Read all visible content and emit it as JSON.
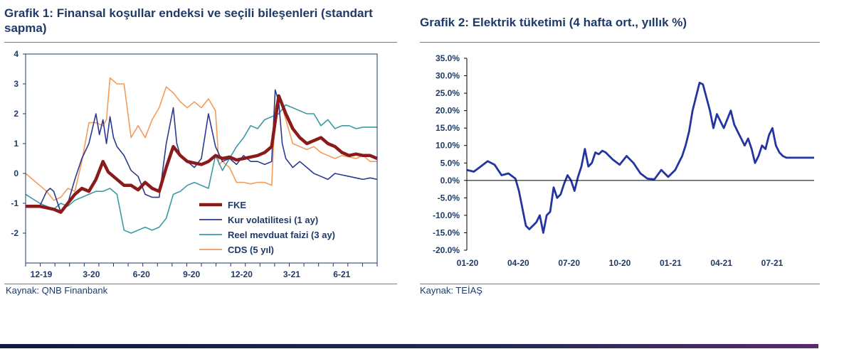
{
  "chart_data": [
    {
      "type": "line",
      "title": "Grafik 1: Finansal koşullar endeksi ve seçili bileşenleri (standart sapma)",
      "source": "Kaynak: QNB Finanbank",
      "ylim": [
        -3,
        4
      ],
      "yticks": [
        "4",
        "3",
        "2",
        "1",
        "0",
        "-1",
        "-2"
      ],
      "xtick_labels": [
        "12-19",
        "3-20",
        "6-20",
        "9-20",
        "12-20",
        "3-21",
        "6-21"
      ],
      "xlim": [
        0,
        100
      ],
      "grid": false,
      "legend_position": "bottom-right",
      "series": [
        {
          "name": "FKE",
          "color": "#8b1a1a",
          "x": [
            0,
            4,
            8,
            10,
            12,
            14,
            16,
            18,
            20,
            22,
            23.5,
            26,
            28,
            30,
            32,
            34,
            36,
            38,
            40,
            42,
            44,
            46,
            48,
            50,
            52,
            54,
            56,
            58,
            60,
            62,
            64,
            66,
            68,
            70,
            72,
            74,
            76,
            78,
            80,
            82,
            84,
            86,
            88,
            90,
            92,
            94,
            96,
            98,
            100
          ],
          "values": [
            -1.1,
            -1.1,
            -1.2,
            -1.3,
            -1.0,
            -0.7,
            -0.5,
            -0.6,
            -0.2,
            0.4,
            0.05,
            -0.2,
            -0.4,
            -0.4,
            -0.55,
            -0.3,
            -0.5,
            -0.6,
            0.2,
            0.9,
            0.6,
            0.4,
            0.35,
            0.3,
            0.4,
            0.6,
            0.5,
            0.55,
            0.45,
            0.5,
            0.55,
            0.6,
            0.7,
            0.9,
            2.6,
            2.0,
            1.5,
            1.2,
            1.0,
            1.1,
            1.2,
            1.0,
            0.9,
            0.7,
            0.6,
            0.65,
            0.6,
            0.6,
            0.5
          ]
        },
        {
          "name": "Kur volatilitesi (1 ay)",
          "color": "#2b3990",
          "x": [
            0,
            4,
            6,
            7,
            8,
            10,
            12,
            14,
            16,
            18,
            20,
            21,
            22,
            23,
            24,
            25,
            26,
            28,
            30,
            32,
            34,
            36,
            38,
            40,
            42,
            43,
            44,
            46,
            48,
            50,
            52,
            54,
            56,
            58,
            60,
            62,
            64,
            66,
            68,
            70,
            71,
            72,
            73,
            74,
            76,
            78,
            80,
            82,
            84,
            86,
            88,
            90,
            92,
            94,
            96,
            98,
            100
          ],
          "values": [
            -1.1,
            -1.1,
            -0.6,
            -0.5,
            -0.6,
            -1.3,
            -1.0,
            -0.2,
            0.5,
            1.0,
            2.0,
            1.3,
            1.8,
            1.0,
            1.9,
            1.2,
            0.9,
            0.6,
            0.1,
            -0.1,
            -0.7,
            -0.8,
            -0.8,
            1.0,
            2.2,
            1.0,
            0.6,
            0.4,
            0.2,
            0.5,
            2.0,
            0.9,
            0.4,
            0.5,
            0.3,
            0.6,
            0.4,
            0.4,
            0.3,
            0.4,
            2.8,
            2.4,
            1.0,
            0.5,
            0.2,
            0.4,
            0.2,
            0.0,
            -0.1,
            -0.2,
            0.0,
            -0.05,
            -0.1,
            -0.15,
            -0.2,
            -0.15,
            -0.2
          ]
        },
        {
          "name": "Reel mevduat faizi (3 ay)",
          "color": "#3a9aa8",
          "x": [
            0,
            4,
            8,
            10,
            12,
            14,
            16,
            18,
            20,
            22,
            24,
            26,
            28,
            30,
            32,
            34,
            36,
            38,
            40,
            42,
            44,
            46,
            48,
            50,
            52,
            54,
            56,
            58,
            60,
            62,
            64,
            66,
            68,
            70,
            72,
            74,
            76,
            78,
            80,
            82,
            84,
            86,
            88,
            90,
            92,
            94,
            96,
            98,
            100
          ],
          "values": [
            -0.7,
            -1.0,
            -1.2,
            -1.0,
            -1.1,
            -0.9,
            -0.8,
            -0.7,
            -0.6,
            -0.6,
            -0.5,
            -0.7,
            -1.9,
            -2.0,
            -1.9,
            -1.8,
            -1.9,
            -1.8,
            -1.5,
            -0.7,
            -0.6,
            -0.4,
            -0.3,
            -0.4,
            -0.5,
            0.6,
            0.1,
            0.5,
            0.9,
            1.2,
            1.6,
            1.5,
            1.8,
            1.9,
            2.0,
            2.3,
            2.2,
            2.1,
            2.0,
            2.0,
            1.6,
            1.8,
            1.5,
            1.6,
            1.6,
            1.5,
            1.55,
            1.55,
            1.55
          ]
        },
        {
          "name": "CDS (5 yıl)",
          "color": "#f39c5a",
          "x": [
            0,
            3,
            6,
            8,
            10,
            12,
            14,
            16,
            18,
            20,
            22,
            23,
            24,
            26,
            28,
            30,
            32,
            34,
            36,
            38,
            40,
            42,
            44,
            46,
            48,
            50,
            52,
            54,
            55,
            56,
            58,
            60,
            62,
            64,
            66,
            68,
            70,
            71,
            72,
            74,
            76,
            78,
            80,
            82,
            84,
            86,
            88,
            90,
            92,
            94,
            96,
            98,
            100
          ],
          "values": [
            0.0,
            -0.3,
            -0.6,
            -0.9,
            -0.8,
            -0.5,
            -0.6,
            0.4,
            1.7,
            1.7,
            1.6,
            1.8,
            3.2,
            3.0,
            3.0,
            1.2,
            1.6,
            1.2,
            1.8,
            2.2,
            2.9,
            2.7,
            2.4,
            2.2,
            2.4,
            2.2,
            2.5,
            2.1,
            0.3,
            0.4,
            0.2,
            -0.3,
            -0.3,
            -0.35,
            -0.3,
            -0.3,
            -0.4,
            2.2,
            2.6,
            1.8,
            1.0,
            0.9,
            0.8,
            0.9,
            0.7,
            0.6,
            0.5,
            0.6,
            0.55,
            0.5,
            0.6,
            0.4,
            0.4
          ]
        }
      ]
    },
    {
      "type": "line",
      "title": "Grafik 2: Elektrik tüketimi (4 hafta ort., yıllık %)",
      "source": "Kaynak: TEİAŞ",
      "ylim": [
        -20,
        35
      ],
      "yticks": [
        "35.0%",
        "30.0%",
        "25.0%",
        "20.0%",
        "15.0%",
        "10.0%",
        "5.0%",
        "0.0%",
        "-5.0%",
        "-10.0%",
        "-15.0%",
        "-20.0%"
      ],
      "xtick_labels": [
        "01-20",
        "04-20",
        "07-20",
        "10-20",
        "01-21",
        "04-21",
        "07-21"
      ],
      "xlim": [
        0,
        100
      ],
      "grid": false,
      "series": [
        {
          "name": "",
          "color": "#2535a0",
          "x": [
            0,
            2,
            4,
            6,
            8,
            10,
            12,
            14,
            15,
            16,
            17,
            18,
            19,
            20,
            21,
            22,
            23,
            24,
            25,
            26,
            27,
            28,
            29,
            30,
            31,
            32,
            33,
            34,
            35,
            36,
            37,
            38,
            39,
            40,
            41,
            42,
            44,
            46,
            48,
            50,
            52,
            54,
            56,
            58,
            60,
            62,
            63,
            64,
            65,
            66,
            67,
            68,
            70,
            71,
            72,
            74,
            76,
            77,
            78,
            79,
            80,
            81,
            82,
            83,
            84,
            85,
            86,
            87,
            88,
            89,
            90,
            91,
            92,
            93,
            94,
            95,
            96,
            97,
            98,
            99,
            100
          ],
          "values": [
            3.0,
            2.5,
            4.0,
            5.5,
            4.5,
            1.5,
            2.0,
            0.5,
            -3.0,
            -8.0,
            -13.0,
            -14.0,
            -13.0,
            -12.0,
            -10.0,
            -15.0,
            -10.0,
            -9.0,
            -2.0,
            -5.0,
            -4.0,
            -1.0,
            1.5,
            0.0,
            -3.0,
            1.0,
            4.0,
            9.0,
            4.0,
            5.0,
            8.0,
            7.5,
            8.5,
            8.0,
            7.0,
            6.0,
            4.5,
            7.0,
            5.0,
            2.0,
            0.5,
            0.3,
            3.0,
            1.0,
            3.0,
            7.0,
            10.0,
            14.0,
            20.0,
            24.0,
            28.0,
            27.5,
            20.0,
            15.0,
            19.0,
            15.0,
            20.0,
            16.0,
            14.0,
            12.0,
            10.0,
            12.0,
            9.0,
            5.0,
            7.0,
            10.0,
            9.0,
            13.0,
            15.0,
            10.0,
            8.0,
            7.0,
            6.5,
            6.5,
            6.5,
            6.5,
            6.5,
            6.5,
            6.5,
            6.5,
            6.5
          ]
        }
      ]
    }
  ]
}
